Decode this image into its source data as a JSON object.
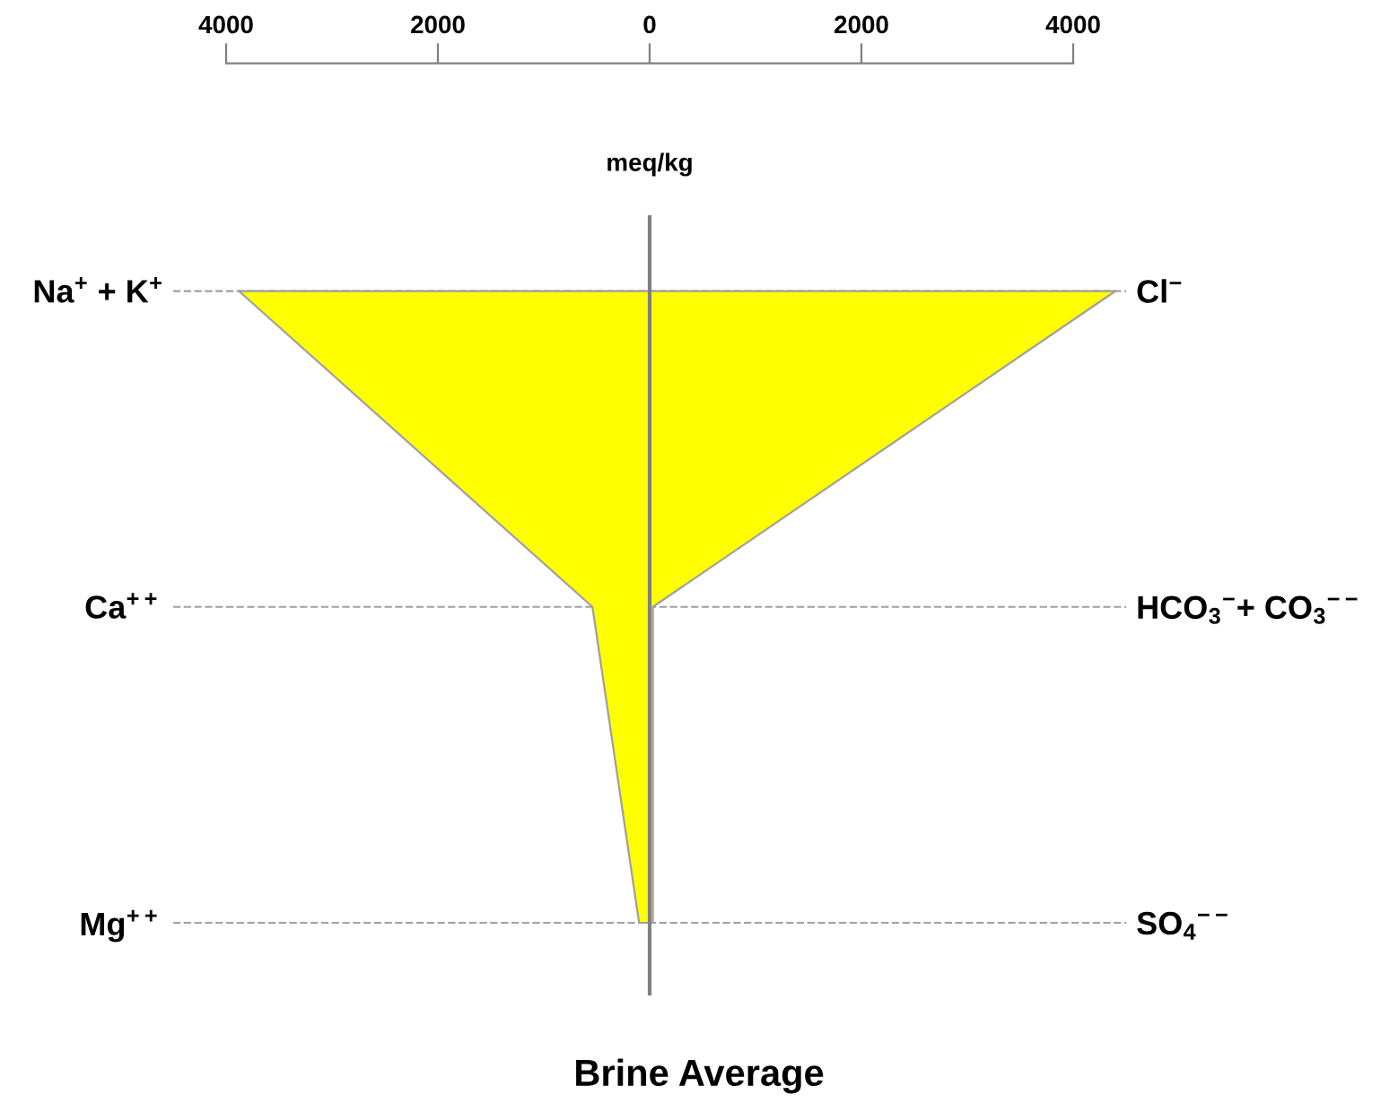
{
  "chart_data": {
    "type": "area",
    "orientation": "horizontal",
    "title": "Brine Average",
    "xlabel": "meq/kg",
    "categories": [
      "Na$^{+}$ + K$^{+}$",
      "Ca$^{++}$",
      "Mg$^{++}$"
    ],
    "y2_categories": [
      "Cl$^{−}$",
      "HCO$_{3}$$^{−}$+ CO$_{3}$$^{−−}$",
      "SO$_{4}$$^{−−}$"
    ],
    "series": [
      {
        "color": "#ffff00",
        "values": [
          -3880,
          -540,
          -100
        ]
      },
      {
        "color": "#fefe00",
        "values": [
          4400,
          30,
          30
        ]
      }
    ],
    "xlim": [
      -4500,
      4500
    ],
    "xticks": [
      {
        "value": -4000,
        "label": "4000"
      },
      {
        "value": -2000,
        "label": "2000"
      },
      0,
      2000,
      4000
    ],
    "ref_lines": [
      {
        "axis": "x",
        "value": 0,
        "color": "#808080"
      }
    ],
    "grid": "y",
    "line_style": "dashed"
  }
}
